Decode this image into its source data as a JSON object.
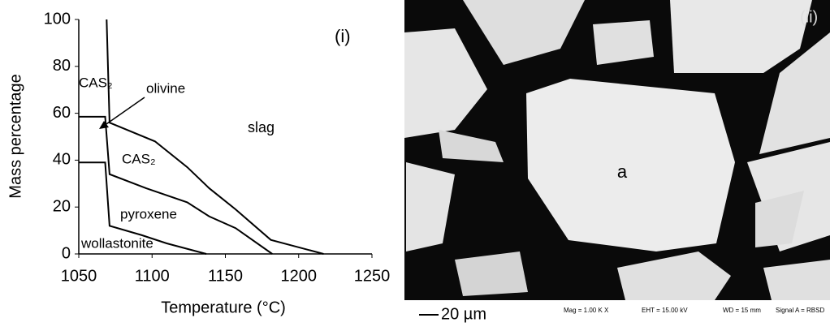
{
  "chart_data": {
    "type": "line",
    "xlabel": "Temperature (°C)",
    "ylabel": "Mass percentage",
    "xlim": [
      1050,
      1250
    ],
    "ylim": [
      0,
      100
    ],
    "xticks": [
      1050,
      1100,
      1150,
      1200,
      1250
    ],
    "yticks": [
      0,
      20,
      40,
      60,
      80,
      100
    ],
    "series": [
      {
        "color": "#000000",
        "x": [
          1069,
          1071,
          1102,
          1124,
          1139,
          1157,
          1181,
          1217
        ],
        "values": [
          100,
          56,
          48,
          37,
          28,
          19,
          6,
          0
        ]
      },
      {
        "color": "#000000",
        "x": [
          1050,
          1068,
          1071,
          1096,
          1124,
          1139,
          1157,
          1182
        ],
        "values": [
          58.5,
          58.5,
          34,
          28,
          22,
          16,
          11,
          0
        ]
      },
      {
        "color": "#000000",
        "x": [
          1050,
          1068,
          1071,
          1093,
          1110,
          1137
        ],
        "values": [
          39,
          39,
          12,
          8,
          4.5,
          0
        ]
      }
    ],
    "annotations": [
      "(i)",
      "CAS₂",
      "olivine",
      "slag",
      "CAS₂",
      "pyroxene",
      "wollastonite"
    ]
  },
  "micrograph": {
    "panel_label": "(ii)",
    "region_label": "a",
    "scale_bar": "20 µm",
    "footer": [
      "Mag =  1.00 K X",
      "EHT = 15.00 kV",
      "WD =  15 mm",
      "Signal A = RBSD"
    ]
  }
}
